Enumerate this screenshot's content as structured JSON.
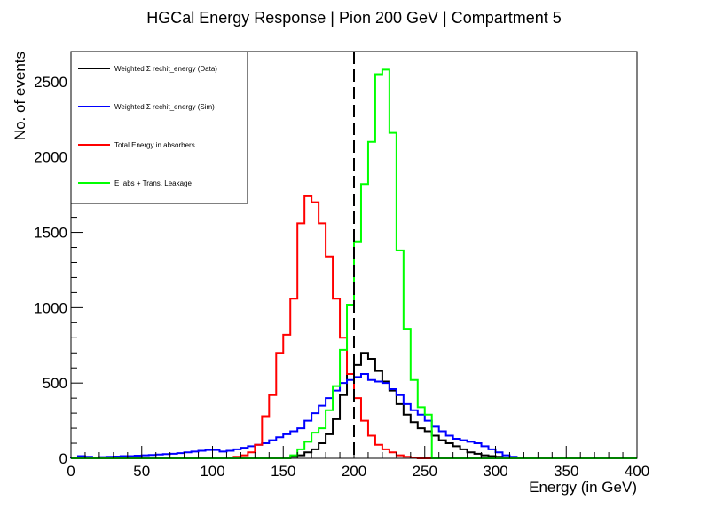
{
  "chart_data": {
    "type": "line",
    "title": "HGCal Energy Response | Pion 200 GeV | Compartment 5",
    "xlabel": "Energy (in GeV)",
    "ylabel": "No. of events",
    "xlim": [
      0,
      400
    ],
    "ylim": [
      0,
      2700
    ],
    "x_ticks": [
      0,
      50,
      100,
      150,
      200,
      250,
      300,
      350,
      400
    ],
    "y_ticks": [
      0,
      500,
      1000,
      1500,
      2000,
      2500
    ],
    "grid": false,
    "legend_position": "top-left",
    "bin_width": 5,
    "vline": {
      "x": 200,
      "style": "dashed",
      "color": "#000000"
    },
    "series": [
      {
        "name": "Weighted Σ rechit_energy (Data)",
        "color": "#000000",
        "x": [
          0,
          5,
          10,
          15,
          20,
          25,
          30,
          35,
          40,
          45,
          50,
          55,
          60,
          65,
          70,
          75,
          80,
          85,
          90,
          95,
          100,
          105,
          110,
          115,
          120,
          125,
          130,
          135,
          140,
          145,
          150,
          155,
          160,
          165,
          170,
          175,
          180,
          185,
          190,
          195,
          200,
          205,
          210,
          215,
          220,
          225,
          230,
          235,
          240,
          245,
          250,
          255,
          260,
          265,
          270,
          275,
          280,
          285,
          290,
          295,
          300,
          305,
          310,
          315,
          320,
          325,
          330,
          335,
          340,
          345,
          350,
          355,
          360,
          365,
          370,
          375,
          380,
          385,
          390,
          395
        ],
        "values": [
          0,
          0,
          0,
          0,
          0,
          0,
          0,
          0,
          0,
          0,
          0,
          0,
          0,
          0,
          0,
          0,
          0,
          0,
          0,
          0,
          0,
          0,
          0,
          0,
          0,
          0,
          0,
          0,
          0,
          0,
          0,
          10,
          20,
          40,
          60,
          100,
          160,
          260,
          420,
          560,
          620,
          700,
          660,
          580,
          510,
          450,
          360,
          290,
          240,
          200,
          180,
          150,
          120,
          100,
          80,
          60,
          40,
          30,
          20,
          15,
          10,
          5,
          0,
          0,
          0,
          0,
          0,
          0,
          0,
          0,
          0,
          0,
          0,
          0,
          0,
          0,
          0,
          0,
          0,
          0
        ]
      },
      {
        "name": "Weighted Σ rechit_energy (Sim)",
        "color": "#0000ff",
        "x": [
          0,
          5,
          10,
          15,
          20,
          25,
          30,
          35,
          40,
          45,
          50,
          55,
          60,
          65,
          70,
          75,
          80,
          85,
          90,
          95,
          100,
          105,
          110,
          115,
          120,
          125,
          130,
          135,
          140,
          145,
          150,
          155,
          160,
          165,
          170,
          175,
          180,
          185,
          190,
          195,
          200,
          205,
          210,
          215,
          220,
          225,
          230,
          235,
          240,
          245,
          250,
          255,
          260,
          265,
          270,
          275,
          280,
          285,
          290,
          295,
          300,
          305,
          310,
          315,
          320,
          325,
          330,
          335,
          340,
          345,
          350,
          355,
          360,
          365,
          370,
          375,
          380,
          385,
          390,
          395
        ],
        "values": [
          5,
          15,
          10,
          5,
          8,
          10,
          12,
          15,
          15,
          18,
          20,
          22,
          25,
          28,
          30,
          35,
          40,
          45,
          50,
          55,
          55,
          45,
          50,
          60,
          70,
          80,
          90,
          100,
          120,
          140,
          160,
          180,
          200,
          250,
          300,
          350,
          400,
          450,
          500,
          520,
          540,
          560,
          520,
          510,
          500,
          460,
          420,
          360,
          320,
          290,
          250,
          210,
          180,
          150,
          130,
          120,
          110,
          100,
          80,
          60,
          40,
          20,
          10,
          5,
          0,
          0,
          0,
          0,
          0,
          0,
          0,
          0,
          0,
          0,
          0,
          0,
          0,
          0,
          0,
          0
        ]
      },
      {
        "name": "Total Energy in absorbers",
        "color": "#ff0000",
        "x": [
          0,
          5,
          10,
          15,
          20,
          25,
          30,
          35,
          40,
          45,
          50,
          55,
          60,
          65,
          70,
          75,
          80,
          85,
          90,
          95,
          100,
          105,
          110,
          115,
          120,
          125,
          130,
          135,
          140,
          145,
          150,
          155,
          160,
          165,
          170,
          175,
          180,
          185,
          190,
          195,
          200,
          205,
          210,
          215,
          220,
          225,
          230,
          235,
          240,
          245,
          250,
          255,
          260,
          265,
          270,
          275,
          280,
          285,
          290,
          295,
          300,
          305,
          310,
          315,
          320,
          325,
          330,
          335,
          340,
          345,
          350,
          355,
          360,
          365,
          370,
          375,
          380,
          385,
          390,
          395
        ],
        "values": [
          0,
          0,
          0,
          0,
          0,
          0,
          0,
          0,
          0,
          0,
          0,
          0,
          0,
          0,
          0,
          0,
          0,
          0,
          0,
          0,
          0,
          0,
          5,
          10,
          20,
          40,
          90,
          280,
          420,
          700,
          820,
          1060,
          1560,
          1740,
          1700,
          1560,
          1340,
          1060,
          800,
          560,
          400,
          250,
          150,
          90,
          60,
          40,
          20,
          10,
          5,
          0,
          0,
          0,
          0,
          0,
          0,
          0,
          0,
          0,
          0,
          0,
          0,
          0,
          0,
          0,
          0,
          0,
          0,
          0,
          0,
          0,
          0,
          0,
          0,
          0,
          0,
          0,
          0,
          0,
          0,
          0
        ]
      },
      {
        "name": "E_abs + Trans. Leakage",
        "color": "#00ff00",
        "x": [
          0,
          5,
          10,
          15,
          20,
          25,
          30,
          35,
          40,
          45,
          50,
          55,
          60,
          65,
          70,
          75,
          80,
          85,
          90,
          95,
          100,
          105,
          110,
          115,
          120,
          125,
          130,
          135,
          140,
          145,
          150,
          155,
          160,
          165,
          170,
          175,
          180,
          185,
          190,
          195,
          200,
          205,
          210,
          215,
          220,
          225,
          230,
          235,
          240,
          245,
          250,
          255,
          260,
          265,
          270,
          275,
          280,
          285,
          290,
          295,
          300,
          305,
          310,
          315,
          320,
          325,
          330,
          335,
          340,
          345,
          350,
          355,
          360,
          365,
          370,
          375,
          380,
          385,
          390,
          395
        ],
        "values": [
          0,
          0,
          0,
          0,
          0,
          0,
          0,
          0,
          0,
          0,
          0,
          0,
          0,
          0,
          0,
          0,
          0,
          0,
          0,
          0,
          0,
          0,
          0,
          0,
          0,
          0,
          0,
          0,
          0,
          0,
          0,
          20,
          60,
          110,
          170,
          200,
          320,
          480,
          720,
          1020,
          1440,
          1820,
          2100,
          2550,
          2580,
          2160,
          1380,
          860,
          520,
          340,
          290,
          0,
          0,
          0,
          0,
          0,
          0,
          0,
          0,
          0,
          0,
          0,
          0,
          0,
          0,
          0,
          0,
          0,
          0,
          0,
          0,
          0,
          0,
          0,
          0,
          0,
          0,
          0,
          0,
          0
        ]
      }
    ]
  }
}
